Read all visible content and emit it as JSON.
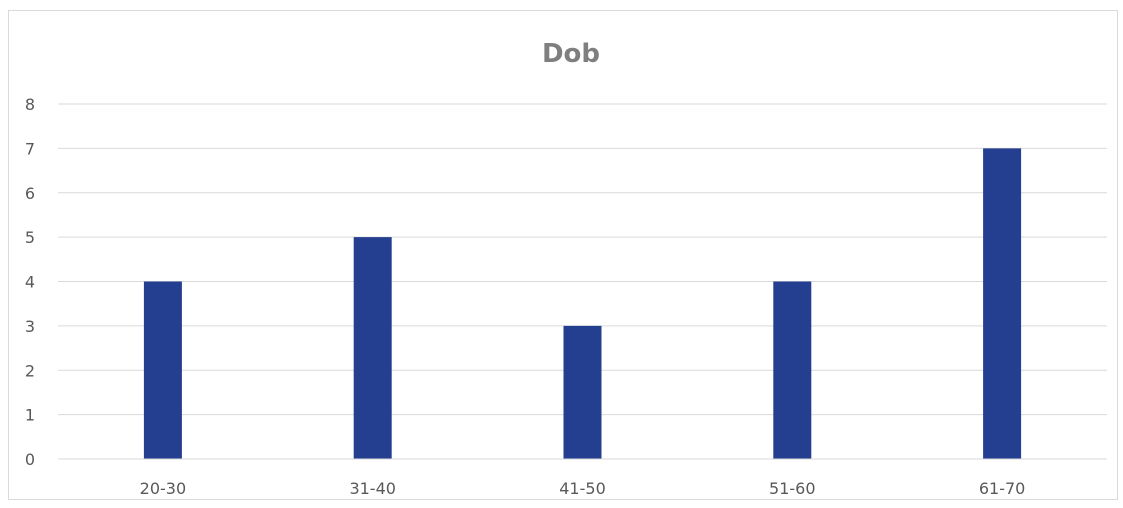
{
  "chart_data": {
    "type": "bar",
    "title": "Dob",
    "xlabel": "",
    "ylabel": "",
    "categories": [
      "20-30",
      "31-40",
      "41-50",
      "51-60",
      "61-70"
    ],
    "values": [
      4,
      5,
      3,
      4,
      7
    ],
    "ylim": [
      0,
      8
    ],
    "yticks": [
      "0",
      "1",
      "2",
      "3",
      "4",
      "5",
      "6",
      "7",
      "8"
    ],
    "grid": true,
    "legend": "none",
    "bar_color": "#243f8f"
  }
}
